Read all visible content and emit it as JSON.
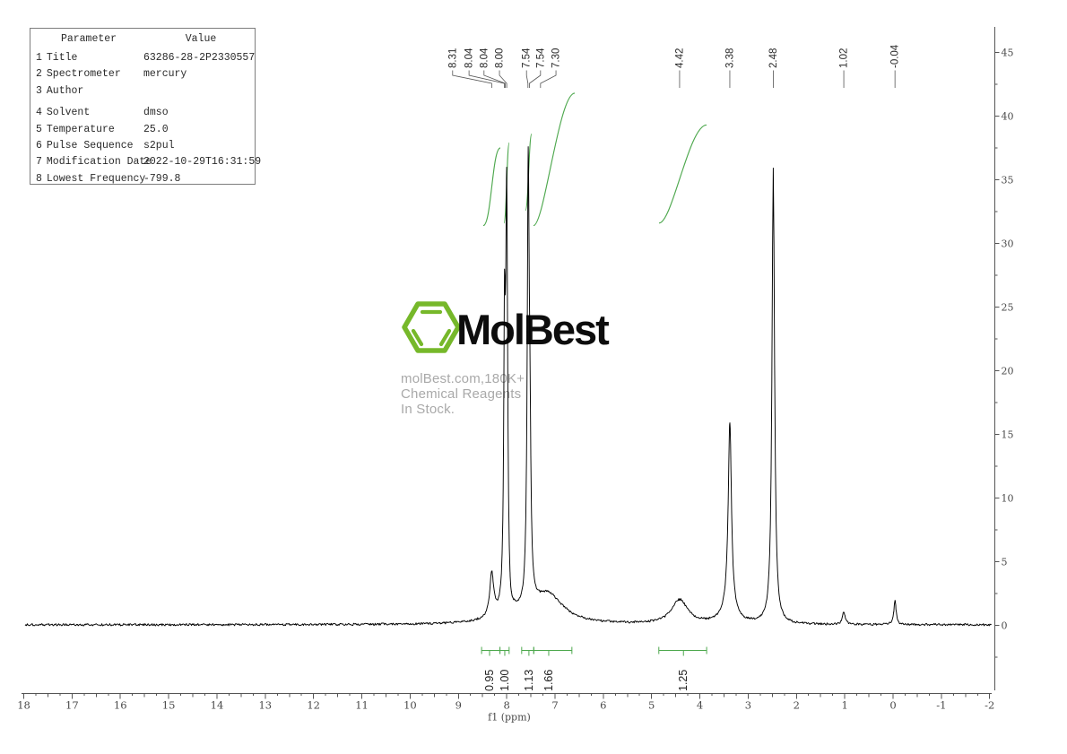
{
  "parameter_table": {
    "headers": [
      "Parameter",
      "Value"
    ],
    "rows": [
      {
        "num": "1",
        "name": "Title",
        "value": "63286-28-2P2330557"
      },
      {
        "num": "2",
        "name": "Spectrometer",
        "value": "mercury"
      },
      {
        "num": "3",
        "name": "Author",
        "value": ""
      },
      {
        "num": "4",
        "name": "Solvent",
        "value": "dmso"
      },
      {
        "num": "5",
        "name": "Temperature",
        "value": "25.0"
      },
      {
        "num": "6",
        "name": "Pulse Sequence",
        "value": "s2pul"
      },
      {
        "num": "7",
        "name": "Modification Date",
        "value": "2022-10-29T16:31:59"
      },
      {
        "num": "8",
        "name": "Lowest Frequency",
        "value": "-799.8"
      }
    ]
  },
  "watermark": {
    "brand": "MolBest",
    "tagline": "molBest.com,180K+ Chemical Reagents In Stock.",
    "hexagon_color": "#76b82a",
    "brand_color": "#0d0d0d",
    "tagline_color": "#a9a9a9"
  },
  "chart_data": {
    "type": "line",
    "kind": "1H NMR spectrum",
    "xlabel": "f1 (ppm)",
    "x_axis": {
      "min": -2,
      "max": 18,
      "unit": "ppm",
      "major_step": 1,
      "minor_step": 0.25,
      "labels": [
        18,
        17,
        16,
        15,
        14,
        13,
        12,
        11,
        10,
        9,
        8,
        7,
        6,
        5,
        4,
        3,
        2,
        1,
        0,
        -1,
        -2
      ]
    },
    "y_axis": {
      "labels": [
        45,
        40,
        35,
        30,
        25,
        20,
        15,
        10,
        5,
        0
      ],
      "minor_step": 2.5,
      "max_shown": 45,
      "min_shown": -2.5
    },
    "trace_color": "#000000",
    "axis_color": "#555555",
    "integral_color": "#4ea84e",
    "peak_labels": [
      {
        "text": "8.31",
        "peak_ppm": 8.31,
        "label_ppm": 9.12
      },
      {
        "text": "8.04",
        "peak_ppm": 8.05,
        "label_ppm": 8.78
      },
      {
        "text": "8.04",
        "peak_ppm": 8.03,
        "label_ppm": 8.47
      },
      {
        "text": "8.00",
        "peak_ppm": 8.0,
        "label_ppm": 8.15
      },
      {
        "text": "7.54",
        "peak_ppm": 7.56,
        "label_ppm": 7.59
      },
      {
        "text": "7.54",
        "peak_ppm": 7.53,
        "label_ppm": 7.3
      },
      {
        "text": "7.30",
        "peak_ppm": 7.3,
        "label_ppm": 6.98
      },
      {
        "text": "4.42",
        "peak_ppm": 4.42,
        "label_ppm": 4.42
      },
      {
        "text": "3.38",
        "peak_ppm": 3.38,
        "label_ppm": 3.38
      },
      {
        "text": "2.48",
        "peak_ppm": 2.48,
        "label_ppm": 2.48
      },
      {
        "text": "1.02",
        "peak_ppm": 1.02,
        "label_ppm": 1.02
      },
      {
        "text": "-0.04",
        "peak_ppm": -0.04,
        "label_ppm": -0.04
      }
    ],
    "peaks": [
      {
        "ppm": 8.31,
        "height": 3.4,
        "hwhm": 0.05
      },
      {
        "ppm": 8.045,
        "height": 20,
        "hwhm": 0.02
      },
      {
        "ppm": 8.0,
        "height": 32,
        "hwhm": 0.024
      },
      {
        "ppm": 7.93,
        "height": -1.05,
        "hwhm": 0.05
      },
      {
        "ppm": 7.555,
        "height": 32.7,
        "hwhm": 0.024
      },
      {
        "ppm": 7.52,
        "height": 10,
        "hwhm": 0.025
      },
      {
        "ppm": 7.9,
        "height": 0.45,
        "hwhm": 0.45
      },
      {
        "ppm": 7.15,
        "height": 2.3,
        "hwhm": 0.38
      },
      {
        "ppm": 4.42,
        "height": 1.9,
        "hwhm": 0.2
      },
      {
        "ppm": 3.38,
        "height": 14.8,
        "hwhm": 0.04
      },
      {
        "ppm": 3.4,
        "height": 1.0,
        "hwhm": 0.18
      },
      {
        "ppm": 2.48,
        "height": 35.7,
        "hwhm": 0.032
      },
      {
        "ppm": 1.02,
        "height": 1.0,
        "hwhm": 0.035
      },
      {
        "ppm": -0.04,
        "height": 1.85,
        "hwhm": 0.028
      }
    ],
    "integral_regions": [
      {
        "label": "0.95",
        "from_ppm": 8.52,
        "to_ppm": 8.14,
        "hook_ppm": 8.355
      },
      {
        "label": "1.00",
        "from_ppm": 8.14,
        "to_ppm": 7.95,
        "hook_ppm": 8.04
      },
      {
        "label": "1.13",
        "from_ppm": 7.69,
        "to_ppm": 7.44,
        "hook_ppm": 7.54
      },
      {
        "label": "1.66",
        "from_ppm": 7.44,
        "to_ppm": 6.65,
        "hook_ppm": 7.13
      },
      {
        "label": "1.25",
        "from_ppm": 4.85,
        "to_ppm": 3.86,
        "hook_ppm": 4.34
      }
    ],
    "integral_curves": [
      {
        "from_ppm": 8.485,
        "to_ppm": 8.132,
        "y_from": 31.4,
        "y_to": 37.5,
        "center_ppm": 8.31
      },
      {
        "from_ppm": 8.058,
        "to_ppm": 7.946,
        "y_from": 31.6,
        "y_to": 37.9,
        "center_ppm": 8.0
      },
      {
        "from_ppm": 7.612,
        "to_ppm": 7.482,
        "y_from": 32.6,
        "y_to": 38.6,
        "center_ppm": 7.545
      },
      {
        "from_ppm": 7.445,
        "to_ppm": 6.591,
        "y_from": 31.4,
        "y_to": 41.8,
        "center_ppm": 7.1
      },
      {
        "from_ppm": 4.846,
        "to_ppm": 3.862,
        "y_from": 31.6,
        "y_to": 39.3,
        "center_ppm": 4.42
      }
    ]
  }
}
